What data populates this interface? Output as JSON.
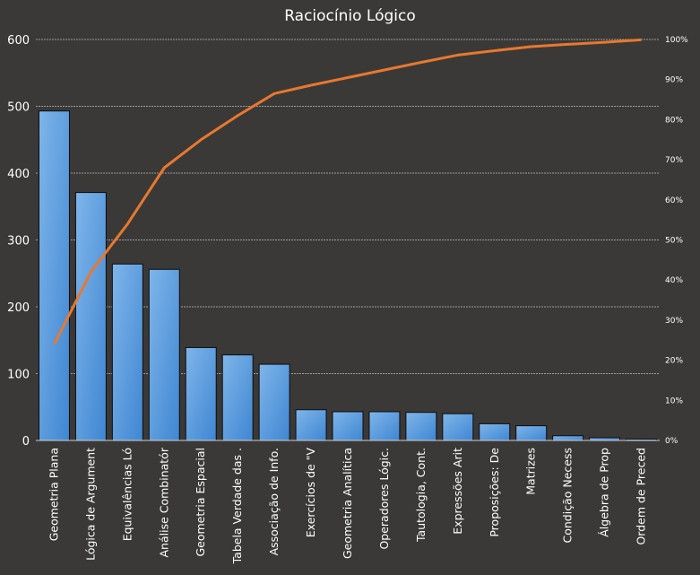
{
  "chart_data": {
    "type": "bar",
    "title": "Raciocínio Lógico",
    "categories": [
      "Geometria Plana",
      "Lógica de Argument",
      "Equivalências Ló",
      "Análise Combinatór",
      "Geometria Espacial",
      "Tabela Verdade das .",
      "Associação de Info.",
      "Exercícios de \"V",
      "Geometria Analítica",
      "Operadores Lógic.",
      "Tautologia, Cont.",
      "Expressões Arit",
      "Proposições: De",
      "Matrizes",
      "Condição Necess",
      "Álgebra de Prop",
      "Ordem de Preced"
    ],
    "series": [
      {
        "type": "bar",
        "axis": "left",
        "values": [
          493,
          371,
          264,
          256,
          139,
          128,
          114,
          46,
          43,
          43,
          42,
          40,
          25,
          22,
          7,
          4,
          2
        ]
      },
      {
        "type": "line",
        "axis": "right",
        "values": [
          24,
          42,
          54,
          68,
          75,
          81,
          86.5,
          88.6,
          90.5,
          92.4,
          94.3,
          96.1,
          97.2,
          98.2,
          98.8,
          99.3,
          99.9
        ]
      }
    ],
    "ylim": [
      0,
      600
    ],
    "yticks": [
      0,
      100,
      200,
      300,
      400,
      500,
      600
    ],
    "y2lim": [
      0,
      100
    ],
    "y2ticks": [
      "0%",
      "10%",
      "20%",
      "30%",
      "40%",
      "50%",
      "60%",
      "70%",
      "80%",
      "90%",
      "100%"
    ],
    "grid": true,
    "colors": {
      "bar": "#4a90d8",
      "bar_light": "#7fb5ea",
      "bar_edge": "#0d0d0d",
      "line": "#e8782e",
      "grid": "#bdbdbd",
      "background": "#3a3938"
    }
  }
}
